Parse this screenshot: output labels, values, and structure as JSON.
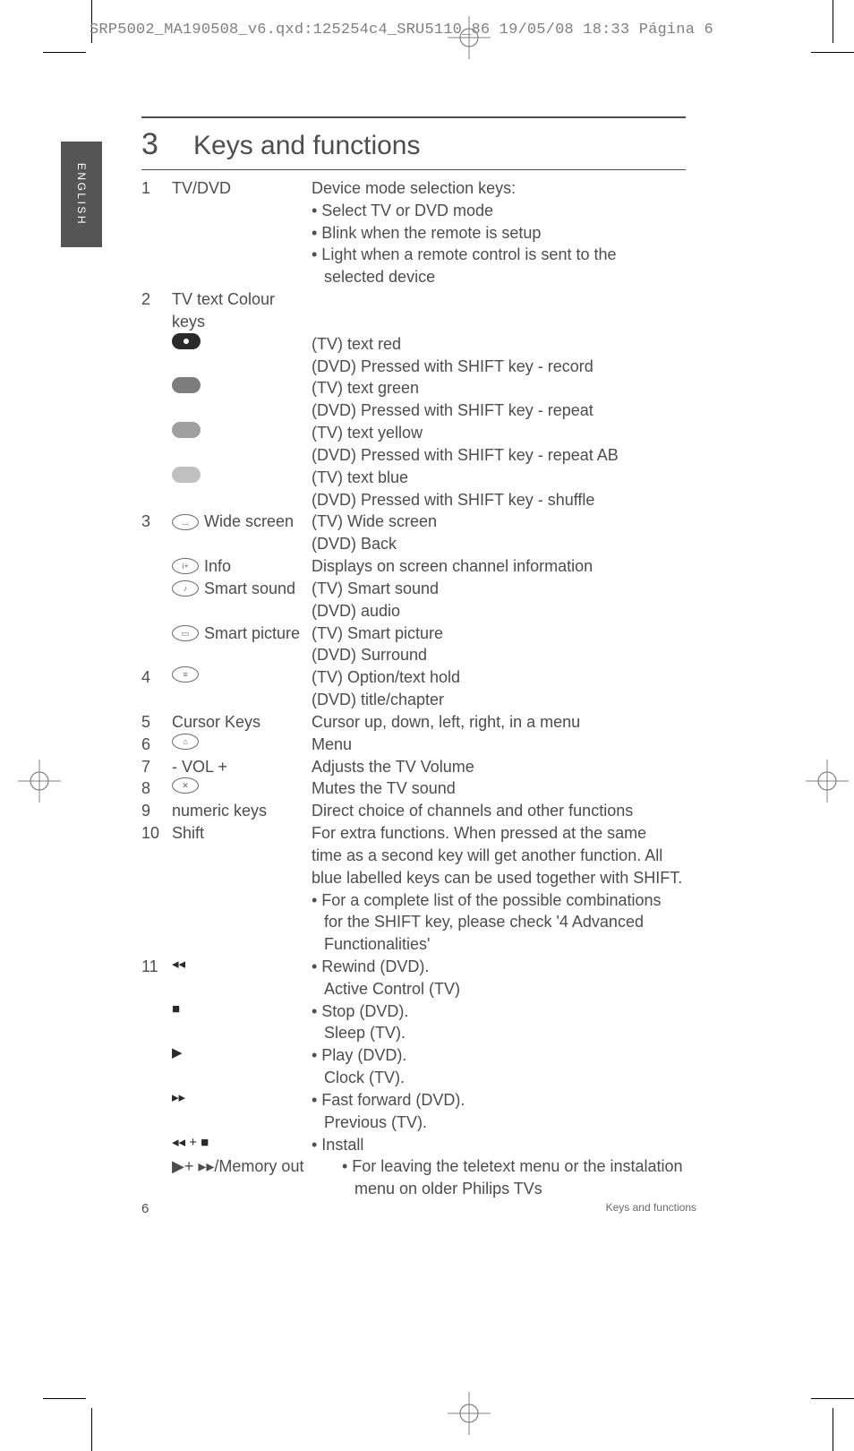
{
  "meta_header": "SRP5002_MA190508_v6.qxd:125254c4_SRU5110_86  19/05/08  18:33  Página 6",
  "lang_tab": "ENGLISH",
  "section": {
    "number": "3",
    "title": "Keys and functions"
  },
  "items": [
    {
      "num": "1",
      "label": "TV/DVD",
      "desc": [
        "Device mode selection keys:",
        "• Select TV or DVD mode",
        "• Blink when the remote is setup",
        "• Light when a remote control is sent to the",
        "  selected device"
      ]
    },
    {
      "num": "2",
      "label": "TV text Colour keys"
    },
    {
      "sub_icon": "pill-red-dot",
      "desc": [
        "(TV) text red",
        "(DVD) Pressed with SHIFT key - record"
      ]
    },
    {
      "sub_icon": "pill-green",
      "desc": [
        "(TV) text green",
        "(DVD) Pressed with SHIFT key - repeat"
      ]
    },
    {
      "sub_icon": "pill-yellow",
      "desc": [
        "(TV) text yellow",
        "(DVD) Pressed with SHIFT key - repeat AB"
      ]
    },
    {
      "sub_icon": "pill-blue",
      "desc": [
        "(TV) text blue",
        "(DVD) Pressed with SHIFT key - shuffle"
      ]
    },
    {
      "num": "3",
      "sub_icon_oval": "⌴",
      "label_after": "Wide screen",
      "desc": [
        "(TV) Wide screen",
        "(DVD) Back"
      ]
    },
    {
      "sub_icon_oval": "i+",
      "label_after": "Info",
      "desc": [
        "Displays on screen channel information"
      ]
    },
    {
      "sub_icon_oval": "♪",
      "label_after": "Smart sound",
      "desc": [
        "(TV) Smart sound",
        "(DVD) audio"
      ]
    },
    {
      "sub_icon_oval": "▭",
      "label_after": "Smart picture",
      "desc": [
        "(TV) Smart picture",
        "(DVD) Surround"
      ]
    },
    {
      "num": "4",
      "sub_icon_oval": "≡",
      "desc": [
        "(TV) Option/text hold",
        "(DVD) title/chapter"
      ]
    },
    {
      "num": "5",
      "label": "Cursor Keys",
      "desc": [
        "Cursor up, down, left, right, in a menu"
      ]
    },
    {
      "num": "6",
      "sub_icon_oval": "⌂",
      "desc": [
        "Menu"
      ]
    },
    {
      "num": "7",
      "label": "- VOL +",
      "desc": [
        "Adjusts the TV Volume"
      ]
    },
    {
      "num": "8",
      "sub_icon_oval": "✕",
      "desc": [
        "Mutes the TV sound"
      ]
    },
    {
      "num": "9",
      "label": "numeric keys",
      "desc": [
        "Direct choice of channels and other functions"
      ]
    },
    {
      "num": "10",
      "label": "Shift",
      "desc": [
        "For extra functions. When pressed at the same",
        "time as a second key will get another function. All",
        "blue labelled keys can be used together with SHIFT.",
        "• For a complete list of the possible combinations",
        "  for the SHIFT key, please check '4 Advanced",
        "  Functionalities'"
      ]
    },
    {
      "num": "11",
      "glyph": "◂◂",
      "desc": [
        "• Rewind (DVD).",
        "  Active Control (TV)"
      ]
    },
    {
      "glyph": "■",
      "desc": [
        "• Stop (DVD).",
        "  Sleep (TV)."
      ]
    },
    {
      "glyph": "▶",
      "desc": [
        "• Play (DVD).",
        "  Clock (TV)."
      ]
    },
    {
      "glyph": "▸▸",
      "desc": [
        "• Fast forward (DVD).",
        "  Previous (TV)."
      ]
    },
    {
      "glyph": "◂◂ + ■",
      "desc": [
        "• Install"
      ]
    },
    {
      "label_wide": "▶+ ▸▸/Memory out",
      "desc": [
        "• For leaving the teletext menu or the instalation",
        "  menu on older Philips TVs"
      ]
    }
  ],
  "footer": {
    "page_num": "6",
    "section_ref": "Keys and functions"
  }
}
